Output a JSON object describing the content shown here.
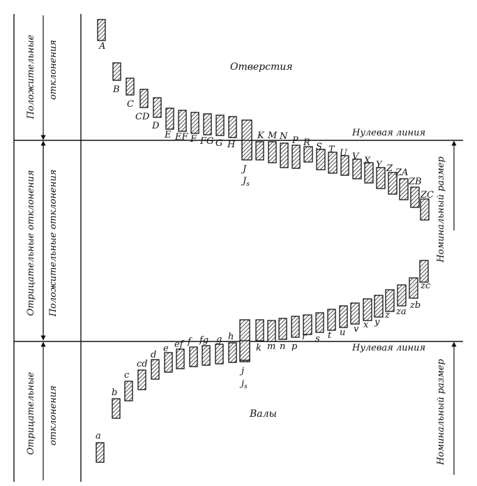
{
  "labels": {
    "top_left_positive": [
      "Положительные",
      "отклонения"
    ],
    "middle_negative": "Отрицательные отклонения",
    "middle_positive": "Положительные отклонения",
    "bottom_left_negative": [
      "Отрицательные",
      "отклонения"
    ],
    "holes_title": "Отверстия",
    "shafts_title": "Валы",
    "zero_line_top": "Нулевая линия",
    "zero_line_bottom": "Нулевая линия",
    "nominal_top": "Номинальный размер",
    "nominal_bottom": "Номинальный размер"
  },
  "holes": [
    {
      "label": "A"
    },
    {
      "label": "B"
    },
    {
      "label": "C"
    },
    {
      "label": "CD"
    },
    {
      "label": "D"
    },
    {
      "label": "E"
    },
    {
      "label": "EF"
    },
    {
      "label": "F"
    },
    {
      "label": "FG"
    },
    {
      "label": "G"
    },
    {
      "label": "H"
    },
    {
      "label": "J"
    },
    {
      "label": "Js"
    },
    {
      "label": "K"
    },
    {
      "label": "M"
    },
    {
      "label": "N"
    },
    {
      "label": "P"
    },
    {
      "label": "R"
    },
    {
      "label": "S"
    },
    {
      "label": "T"
    },
    {
      "label": "U"
    },
    {
      "label": "V"
    },
    {
      "label": "X"
    },
    {
      "label": "Y"
    },
    {
      "label": "Z"
    },
    {
      "label": "ZA"
    },
    {
      "label": "ZB"
    },
    {
      "label": "ZC"
    }
  ],
  "shafts": [
    {
      "label": "a"
    },
    {
      "label": "b"
    },
    {
      "label": "c"
    },
    {
      "label": "cd"
    },
    {
      "label": "d"
    },
    {
      "label": "e"
    },
    {
      "label": "ef"
    },
    {
      "label": "f"
    },
    {
      "label": "fg"
    },
    {
      "label": "g"
    },
    {
      "label": "h"
    },
    {
      "label": "j"
    },
    {
      "label": "js"
    },
    {
      "label": "k"
    },
    {
      "label": "m"
    },
    {
      "label": "n"
    },
    {
      "label": "p"
    },
    {
      "label": "r"
    },
    {
      "label": "s"
    },
    {
      "label": "t"
    },
    {
      "label": "u"
    },
    {
      "label": "v"
    },
    {
      "label": "x"
    },
    {
      "label": "y"
    },
    {
      "label": "z"
    },
    {
      "label": "za"
    },
    {
      "label": "zb"
    },
    {
      "label": "zc"
    }
  ],
  "colors": {
    "ink": "#111111",
    "background": "#ffffff"
  }
}
